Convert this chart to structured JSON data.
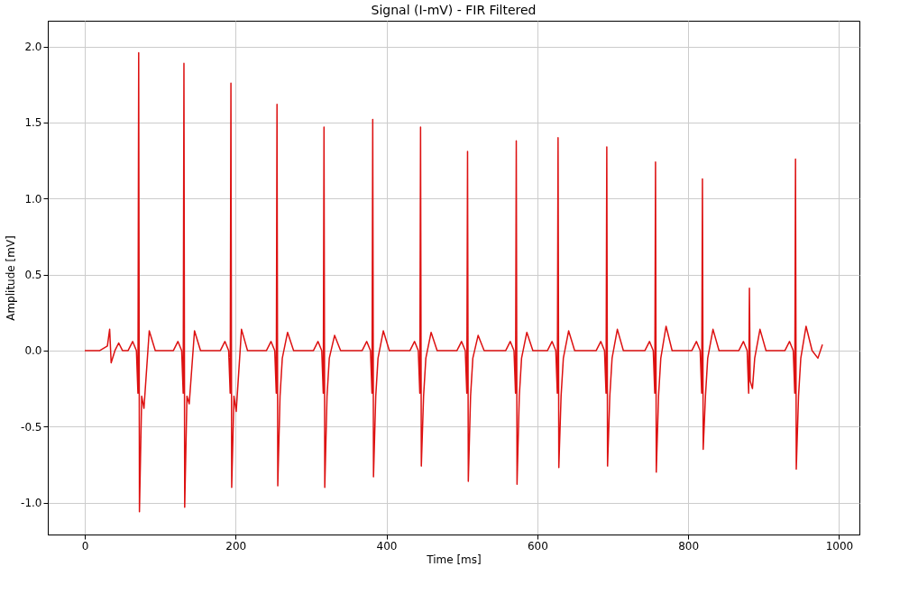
{
  "chart_data": {
    "type": "line",
    "title": "Signal (I-mV) - FIR Filtered",
    "xlabel": "Time [ms]",
    "ylabel": "Amplitude [mV]",
    "x": [
      0,
      20,
      30,
      33,
      35,
      40,
      45,
      50,
      57.5,
      63.5,
      68.5,
      70.5,
      71.5,
      72.5,
      75.5,
      78.5,
      85.5,
      93.5,
      117.5,
      123.5,
      128.5,
      130.5,
      131.5,
      132.5,
      135.5,
      138.5,
      145.5,
      153.5,
      179.8,
      185.8,
      190.8,
      192.8,
      193.8,
      194.8,
      197.8,
      200.8,
      207.8,
      215.8,
      240.9,
      246.9,
      251.9,
      253.9,
      254.9,
      255.9,
      258.9,
      261.9,
      268.9,
      276.9,
      303.2,
      309.2,
      314.2,
      316.2,
      317.2,
      318.2,
      321.2,
      324.2,
      331.2,
      339.2,
      367.8,
      373.8,
      378.8,
      380.8,
      381.8,
      382.8,
      385.8,
      388.8,
      395.8,
      403.8,
      431.2,
      437.2,
      442.2,
      444.2,
      445.2,
      446.2,
      449.2,
      452.2,
      459.2,
      467.2,
      493.5,
      499.5,
      504.5,
      506.5,
      507.5,
      508.5,
      511.5,
      514.5,
      521.5,
      529.5,
      558.1,
      564.1,
      569.1,
      571.1,
      572.1,
      573.1,
      576.1,
      579.1,
      586.1,
      594.1,
      613.5,
      619.5,
      624.5,
      626.5,
      627.5,
      628.5,
      631.5,
      634.5,
      641.5,
      649.5,
      678.1,
      684.1,
      689.1,
      691.1,
      692.1,
      693.1,
      696.1,
      699.1,
      706.1,
      714.1,
      742.7,
      748.7,
      753.7,
      755.7,
      756.7,
      757.7,
      760.7,
      763.7,
      770.7,
      778.7,
      804.9,
      810.9,
      815.9,
      817.9,
      818.9,
      819.9,
      822.9,
      825.9,
      832.9,
      840.9,
      867.2,
      873.2,
      878.2,
      880.2,
      881.2,
      882.2,
      885.2,
      888.2,
      895.2,
      903.2,
      928.3,
      934.3,
      939.3,
      941.3,
      942.3,
      943.3,
      946.3,
      949.3,
      956.3,
      964.3,
      972,
      978
    ],
    "values": [
      0,
      0,
      0.03,
      0.14,
      -0.08,
      0,
      0.05,
      0,
      0,
      0.06,
      0,
      -0.28,
      1.96,
      -1.06,
      -0.3,
      -0.38,
      0.13,
      0,
      0,
      0.06,
      0,
      -0.28,
      1.89,
      -1.03,
      -0.3,
      -0.35,
      0.13,
      0,
      0,
      0.06,
      0,
      -0.28,
      1.76,
      -0.9,
      -0.3,
      -0.4,
      0.14,
      0,
      0,
      0.06,
      0,
      -0.28,
      1.62,
      -0.89,
      -0.3,
      -0.05,
      0.12,
      0,
      0,
      0.06,
      0,
      -0.28,
      1.47,
      -0.9,
      -0.3,
      -0.05,
      0.1,
      0,
      0,
      0.06,
      0,
      -0.28,
      1.52,
      -0.83,
      -0.3,
      -0.05,
      0.13,
      0,
      0,
      0.06,
      0,
      -0.28,
      1.47,
      -0.76,
      -0.3,
      -0.05,
      0.12,
      0,
      0,
      0.06,
      0,
      -0.28,
      1.31,
      -0.86,
      -0.3,
      -0.05,
      0.1,
      0,
      0,
      0.06,
      0,
      -0.28,
      1.38,
      -0.88,
      -0.3,
      -0.05,
      0.12,
      0,
      0,
      0.06,
      0,
      -0.28,
      1.4,
      -0.77,
      -0.3,
      -0.05,
      0.13,
      0,
      0,
      0.06,
      0,
      -0.28,
      1.34,
      -0.76,
      -0.3,
      -0.05,
      0.14,
      0,
      0,
      0.06,
      0,
      -0.28,
      1.24,
      -0.8,
      -0.3,
      -0.05,
      0.16,
      0,
      0,
      0.06,
      0,
      -0.28,
      1.13,
      -0.65,
      -0.3,
      -0.05,
      0.14,
      0,
      0,
      0.06,
      0,
      -0.28,
      0.41,
      -0.2,
      -0.25,
      -0.05,
      0.14,
      0,
      0,
      0.06,
      0,
      -0.28,
      1.26,
      -0.78,
      -0.3,
      -0.05,
      0.16,
      0,
      -0.05,
      0.04
    ],
    "color": "#dd1111",
    "xlim": [
      -49,
      1027
    ],
    "xticks": [
      0,
      200,
      400,
      600,
      800,
      1000
    ],
    "ylim": [
      -1.21,
      2.17
    ],
    "yticks": [
      {
        "value": -1,
        "label": "-1.0"
      },
      {
        "value": -0.5,
        "label": "-0.5"
      },
      {
        "value": 0,
        "label": "0.0"
      },
      {
        "value": 0.5,
        "label": "0.5"
      },
      {
        "value": 1,
        "label": "1.0"
      },
      {
        "value": 1.5,
        "label": "1.5"
      },
      {
        "value": 2,
        "label": "2.0"
      }
    ],
    "grid": true,
    "line_style": "solid"
  }
}
